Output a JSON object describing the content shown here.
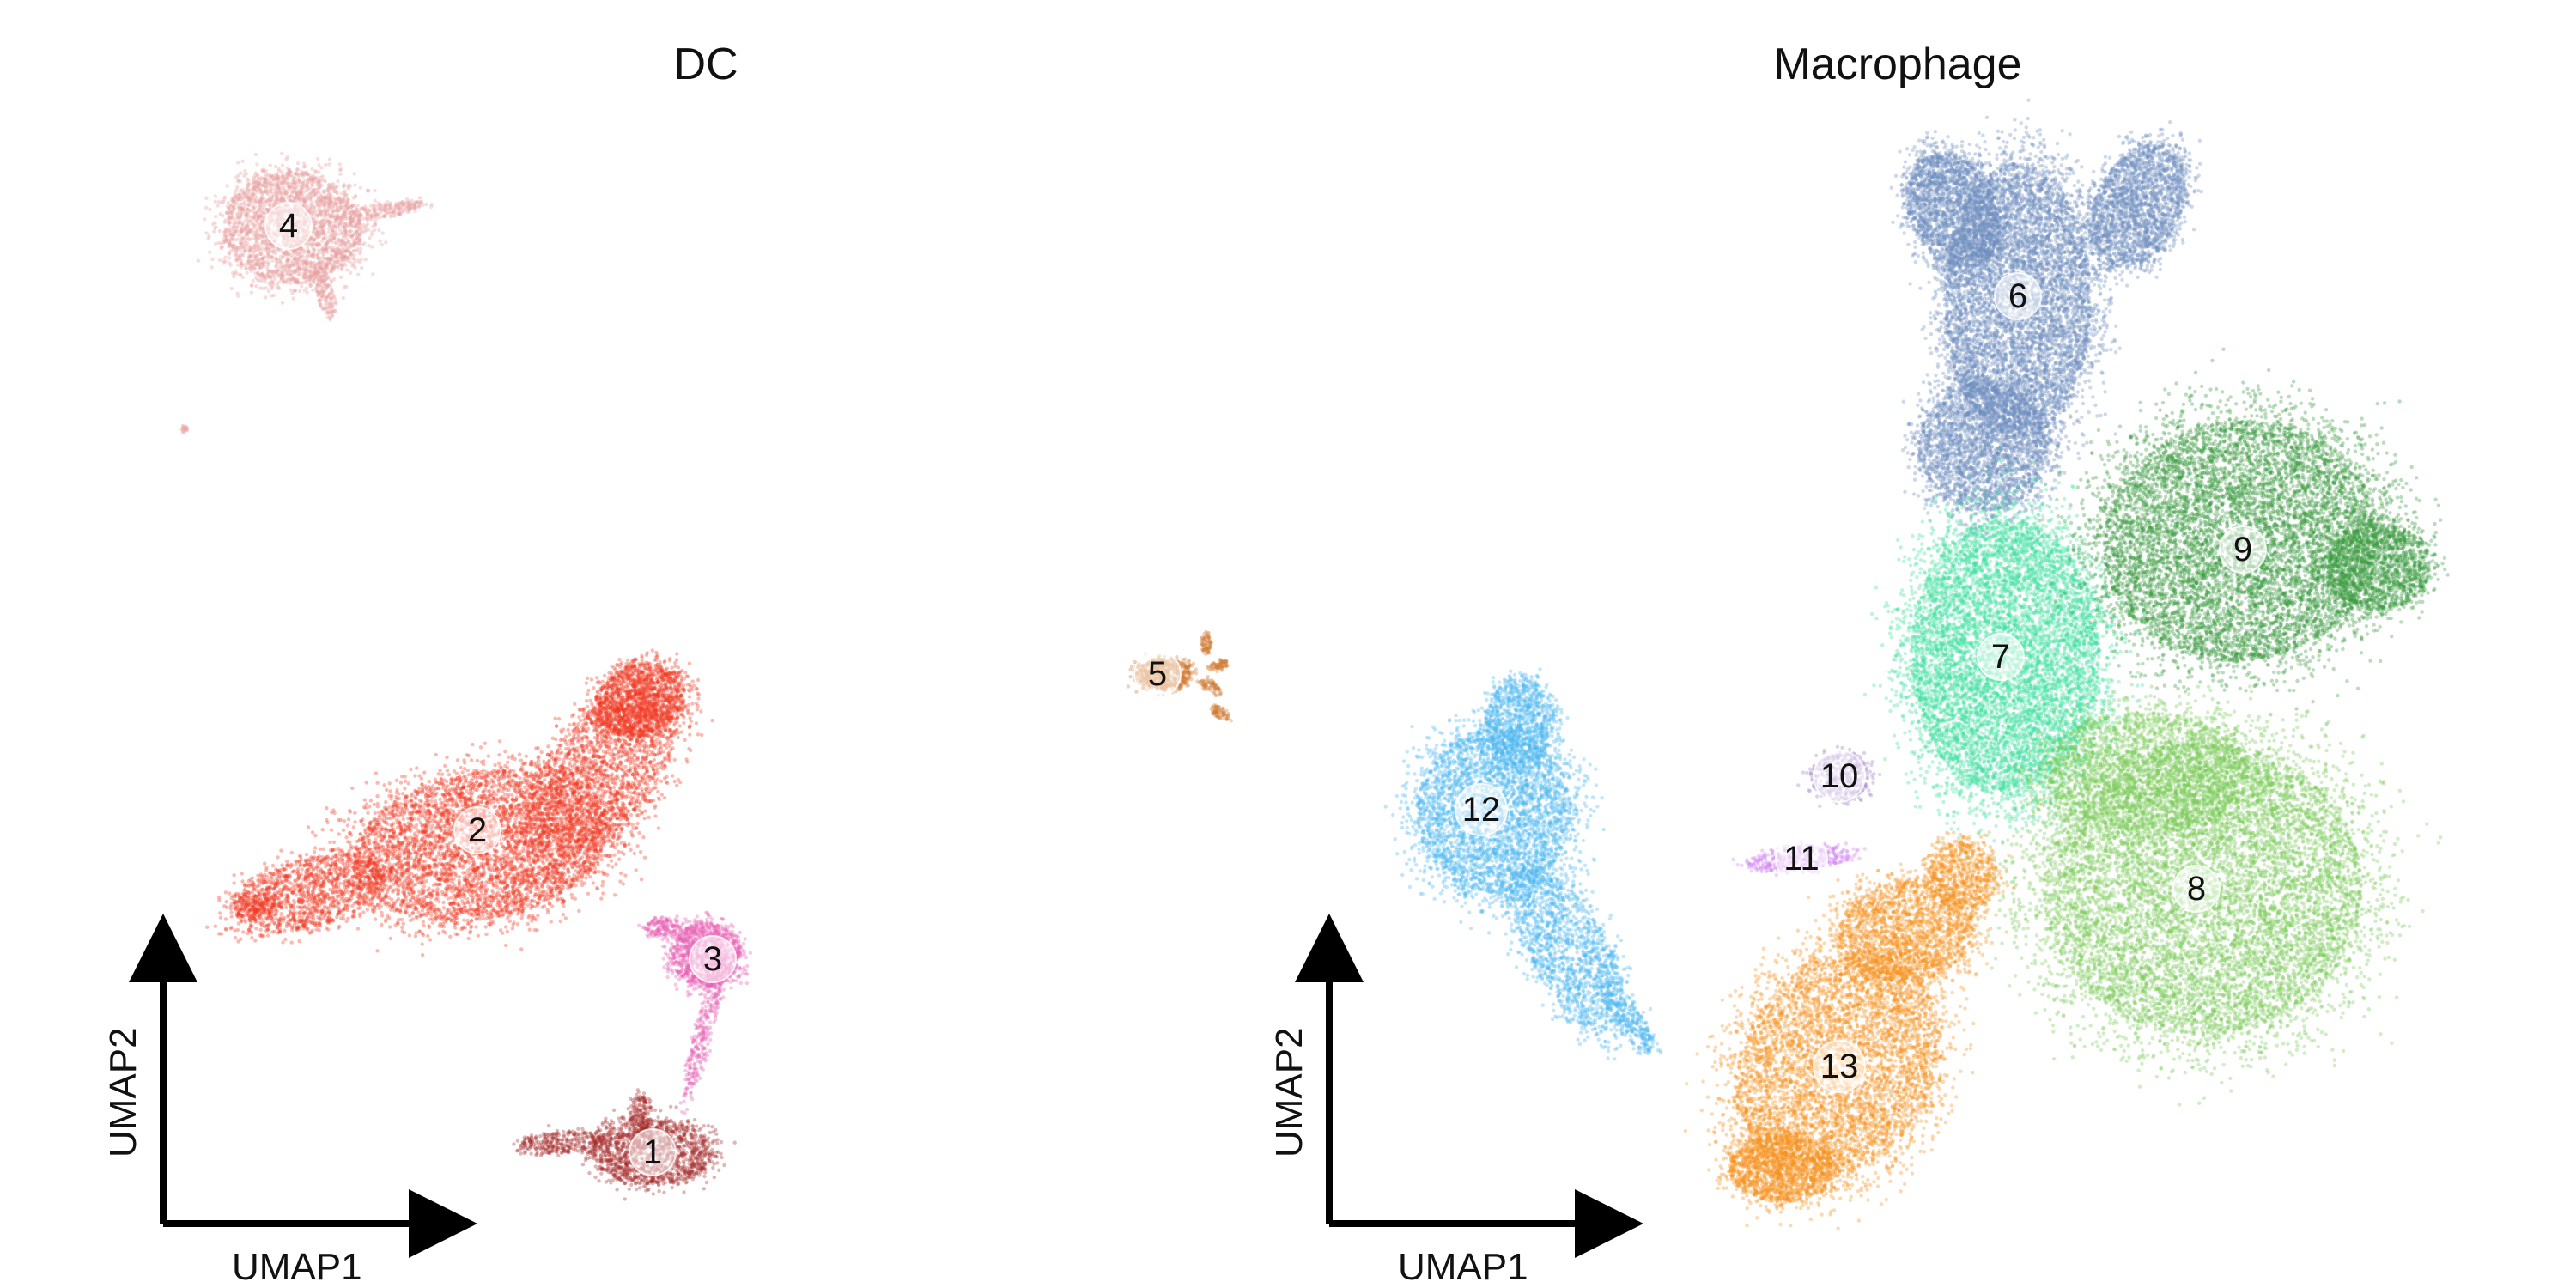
{
  "chart_data": [
    {
      "type": "scatter",
      "title": "DC",
      "xlabel": "UMAP1",
      "ylabel": "UMAP2",
      "series": [
        {
          "name": "1",
          "color": "#a52a2a",
          "x": 0.37,
          "y": 0.1
        },
        {
          "name": "2",
          "color": "#f03a22",
          "x": 0.25,
          "y": 0.42
        },
        {
          "name": "3",
          "color": "#e860b5",
          "x": 0.4,
          "y": 0.3
        },
        {
          "name": "4",
          "color": "#e8a0a0",
          "x": 0.13,
          "y": 0.94
        }
      ]
    },
    {
      "type": "scatter",
      "title": "Macrophage",
      "xlabel": "UMAP1",
      "ylabel": "UMAP2",
      "series": [
        {
          "name": "5",
          "color": "#d07a35",
          "x": 0.02,
          "y": 0.62
        },
        {
          "name": "6",
          "color": "#6f8fbf",
          "x": 0.72,
          "y": 0.9
        },
        {
          "name": "7",
          "color": "#40e0a0",
          "x": 0.7,
          "y": 0.62
        },
        {
          "name": "8",
          "color": "#7ccc5a",
          "x": 0.86,
          "y": 0.38
        },
        {
          "name": "9",
          "color": "#3a9a40",
          "x": 0.89,
          "y": 0.7
        },
        {
          "name": "10",
          "color": "#a080c8",
          "x": 0.49,
          "y": 0.52
        },
        {
          "name": "11",
          "color": "#d080f0",
          "x": 0.48,
          "y": 0.45
        },
        {
          "name": "12",
          "color": "#4cb8f0",
          "x": 0.15,
          "y": 0.49
        },
        {
          "name": "13",
          "color": "#f59220",
          "x": 0.49,
          "y": 0.19
        }
      ]
    }
  ]
}
